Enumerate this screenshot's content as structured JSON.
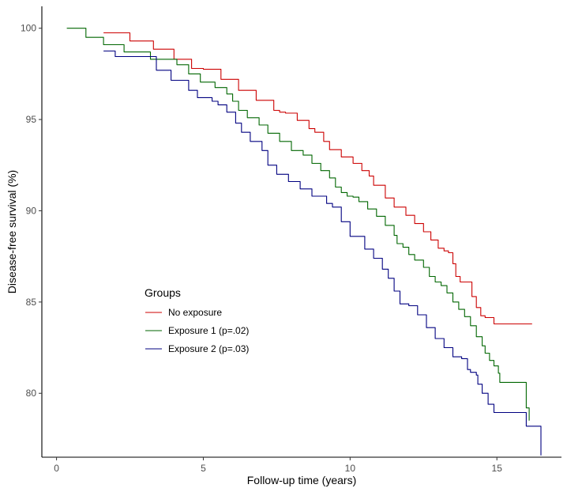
{
  "chart_data": {
    "type": "line",
    "title": "",
    "xlabel": "Follow-up time (years)",
    "ylabel": "Disease-free survival (%)",
    "xlim": [
      -0.5,
      17.2
    ],
    "ylim": [
      76.5,
      101.2
    ],
    "xticks": [
      0,
      5,
      10,
      15
    ],
    "yticks": [
      80,
      85,
      90,
      95,
      100
    ],
    "grid": false,
    "legend": {
      "title": "Groups",
      "position": "lower-left-inside"
    },
    "step": true,
    "series": [
      {
        "name": "No exposure",
        "color": "#cc0000",
        "points": [
          [
            1.6,
            99.75
          ],
          [
            2.5,
            99.3
          ],
          [
            3.3,
            98.85
          ],
          [
            4.0,
            98.3
          ],
          [
            4.6,
            97.8
          ],
          [
            5.0,
            97.75
          ],
          [
            5.6,
            97.2
          ],
          [
            6.2,
            96.6
          ],
          [
            6.8,
            96.05
          ],
          [
            7.4,
            95.5
          ],
          [
            7.6,
            95.4
          ],
          [
            7.8,
            95.35
          ],
          [
            8.2,
            94.95
          ],
          [
            8.6,
            94.5
          ],
          [
            8.8,
            94.3
          ],
          [
            9.1,
            93.8
          ],
          [
            9.3,
            93.35
          ],
          [
            9.7,
            92.95
          ],
          [
            10.1,
            92.6
          ],
          [
            10.4,
            92.2
          ],
          [
            10.65,
            91.9
          ],
          [
            10.8,
            91.4
          ],
          [
            11.2,
            90.7
          ],
          [
            11.5,
            90.2
          ],
          [
            11.9,
            89.75
          ],
          [
            12.2,
            89.3
          ],
          [
            12.5,
            88.85
          ],
          [
            12.75,
            88.4
          ],
          [
            13.0,
            87.95
          ],
          [
            13.2,
            87.8
          ],
          [
            13.35,
            87.7
          ],
          [
            13.5,
            87.1
          ],
          [
            13.6,
            86.4
          ],
          [
            13.75,
            86.1
          ],
          [
            14.0,
            86.1
          ],
          [
            14.15,
            85.3
          ],
          [
            14.3,
            84.7
          ],
          [
            14.45,
            84.25
          ],
          [
            14.6,
            84.15
          ],
          [
            14.9,
            83.8
          ],
          [
            15.3,
            83.8
          ],
          [
            15.8,
            83.8
          ],
          [
            16.2,
            83.8
          ]
        ]
      },
      {
        "name": "Exposure 1 (p=.02)",
        "color": "#006600",
        "points": [
          [
            0.35,
            100.0
          ],
          [
            1.0,
            99.5
          ],
          [
            1.6,
            99.1
          ],
          [
            2.3,
            98.7
          ],
          [
            3.2,
            98.3
          ],
          [
            4.1,
            98.0
          ],
          [
            4.5,
            97.5
          ],
          [
            4.9,
            97.05
          ],
          [
            5.4,
            96.75
          ],
          [
            5.8,
            96.4
          ],
          [
            6.0,
            96.0
          ],
          [
            6.2,
            95.5
          ],
          [
            6.5,
            95.1
          ],
          [
            6.9,
            94.7
          ],
          [
            7.2,
            94.25
          ],
          [
            7.6,
            93.8
          ],
          [
            8.0,
            93.3
          ],
          [
            8.4,
            93.05
          ],
          [
            8.7,
            92.6
          ],
          [
            9.0,
            92.2
          ],
          [
            9.3,
            91.8
          ],
          [
            9.5,
            91.3
          ],
          [
            9.7,
            91.0
          ],
          [
            9.9,
            90.8
          ],
          [
            10.1,
            90.75
          ],
          [
            10.3,
            90.5
          ],
          [
            10.6,
            90.1
          ],
          [
            10.9,
            89.7
          ],
          [
            11.2,
            89.2
          ],
          [
            11.5,
            88.65
          ],
          [
            11.6,
            88.2
          ],
          [
            11.8,
            88.0
          ],
          [
            12.0,
            87.6
          ],
          [
            12.2,
            87.3
          ],
          [
            12.5,
            86.9
          ],
          [
            12.7,
            86.4
          ],
          [
            12.9,
            86.1
          ],
          [
            13.1,
            85.9
          ],
          [
            13.3,
            85.5
          ],
          [
            13.5,
            85.0
          ],
          [
            13.7,
            84.6
          ],
          [
            13.9,
            84.2
          ],
          [
            14.1,
            83.7
          ],
          [
            14.3,
            83.1
          ],
          [
            14.5,
            82.6
          ],
          [
            14.6,
            82.2
          ],
          [
            14.75,
            81.8
          ],
          [
            14.9,
            81.5
          ],
          [
            15.05,
            81.1
          ],
          [
            15.1,
            80.6
          ],
          [
            15.8,
            80.6
          ],
          [
            16.0,
            79.2
          ],
          [
            16.1,
            78.5
          ]
        ]
      },
      {
        "name": "Exposure 2 (p=.03)",
        "color": "#000080",
        "points": [
          [
            1.6,
            98.75
          ],
          [
            2.0,
            98.45
          ],
          [
            3.4,
            97.7
          ],
          [
            3.9,
            97.15
          ],
          [
            4.5,
            96.6
          ],
          [
            4.8,
            96.2
          ],
          [
            5.3,
            96.0
          ],
          [
            5.5,
            95.8
          ],
          [
            5.8,
            95.4
          ],
          [
            6.1,
            94.8
          ],
          [
            6.3,
            94.3
          ],
          [
            6.6,
            93.8
          ],
          [
            7.0,
            93.3
          ],
          [
            7.2,
            92.5
          ],
          [
            7.5,
            92.0
          ],
          [
            7.9,
            91.6
          ],
          [
            8.3,
            91.2
          ],
          [
            8.7,
            90.8
          ],
          [
            9.2,
            90.4
          ],
          [
            9.4,
            90.2
          ],
          [
            9.7,
            89.4
          ],
          [
            10.0,
            88.6
          ],
          [
            10.5,
            87.9
          ],
          [
            10.8,
            87.4
          ],
          [
            11.1,
            86.8
          ],
          [
            11.3,
            86.3
          ],
          [
            11.5,
            85.6
          ],
          [
            11.7,
            84.9
          ],
          [
            12.0,
            84.8
          ],
          [
            12.3,
            84.3
          ],
          [
            12.6,
            83.6
          ],
          [
            12.9,
            83.0
          ],
          [
            13.2,
            82.5
          ],
          [
            13.5,
            82.0
          ],
          [
            13.8,
            81.9
          ],
          [
            14.0,
            81.3
          ],
          [
            14.1,
            81.15
          ],
          [
            14.3,
            81.0
          ],
          [
            14.35,
            80.5
          ],
          [
            14.5,
            80.0
          ],
          [
            14.7,
            79.4
          ],
          [
            14.9,
            78.95
          ],
          [
            15.5,
            78.95
          ],
          [
            15.7,
            78.95
          ],
          [
            16.0,
            78.2
          ],
          [
            16.5,
            76.6
          ]
        ]
      }
    ]
  }
}
